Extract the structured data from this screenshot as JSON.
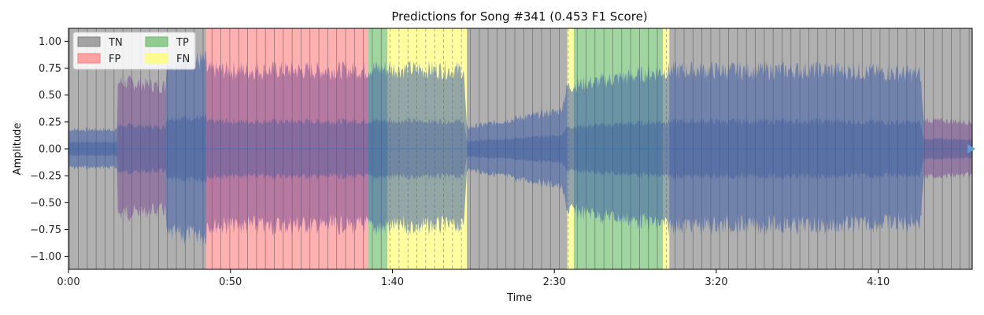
{
  "chart_data": {
    "type": "area",
    "title": "Predictions for Song #341 (0.453 F1 Score)",
    "xlabel": "Time",
    "ylabel": "Amplitude",
    "xlim": [
      0,
      279
    ],
    "ylim": [
      -1.12,
      1.12
    ],
    "x_ticks": [
      {
        "value": 0,
        "label": "0:00"
      },
      {
        "value": 50,
        "label": "0:50"
      },
      {
        "value": 100,
        "label": "1:40"
      },
      {
        "value": 150,
        "label": "2:30"
      },
      {
        "value": 200,
        "label": "3:20"
      },
      {
        "value": 250,
        "label": "4:10"
      }
    ],
    "y_ticks": [
      {
        "value": 1.0,
        "label": "1.00"
      },
      {
        "value": 0.75,
        "label": "0.75"
      },
      {
        "value": 0.5,
        "label": "0.50"
      },
      {
        "value": 0.25,
        "label": "0.25"
      },
      {
        "value": 0.0,
        "label": "0.00"
      },
      {
        "value": -0.25,
        "label": "−0.25"
      },
      {
        "value": -0.5,
        "label": "−0.50"
      },
      {
        "value": -0.75,
        "label": "−0.75"
      },
      {
        "value": -1.0,
        "label": "−1.00"
      }
    ],
    "legend": {
      "placement": "top-left",
      "entries": [
        {
          "key": "TN",
          "label": "TN",
          "color": "#808080"
        },
        {
          "key": "FP",
          "label": "FP",
          "color": "#ff7f7f"
        },
        {
          "key": "TP",
          "label": "TP",
          "color": "#66bb66"
        },
        {
          "key": "FN",
          "label": "FN",
          "color": "#ffff66"
        }
      ]
    },
    "segments": [
      {
        "start": 0,
        "end": 42.5,
        "label": "TN"
      },
      {
        "start": 42.5,
        "end": 92.5,
        "label": "FP"
      },
      {
        "start": 92.5,
        "end": 98.5,
        "label": "TP"
      },
      {
        "start": 98.5,
        "end": 123,
        "label": "FN"
      },
      {
        "start": 123,
        "end": 154,
        "label": "TN"
      },
      {
        "start": 154,
        "end": 156,
        "label": "FN"
      },
      {
        "start": 156,
        "end": 183.5,
        "label": "TP"
      },
      {
        "start": 183.5,
        "end": 185.5,
        "label": "FN"
      },
      {
        "start": 185.5,
        "end": 279,
        "label": "TN"
      }
    ],
    "envelope": [
      {
        "x": 0,
        "amp": 0.2,
        "color": "blue"
      },
      {
        "x": 15,
        "amp": 0.2,
        "color": "blue"
      },
      {
        "x": 15,
        "amp": 0.7,
        "color": "purple"
      },
      {
        "x": 30,
        "amp": 0.65,
        "color": "purple"
      },
      {
        "x": 30,
        "amp": 0.92,
        "color": "blue"
      },
      {
        "x": 42.5,
        "amp": 0.92,
        "color": "blue"
      },
      {
        "x": 42.5,
        "amp": 0.82,
        "color": "purple"
      },
      {
        "x": 92.5,
        "amp": 0.82,
        "color": "purple"
      },
      {
        "x": 92.5,
        "amp": 0.84,
        "color": "blue"
      },
      {
        "x": 122,
        "amp": 0.82,
        "color": "blue"
      },
      {
        "x": 123,
        "amp": 0.22,
        "color": "blue"
      },
      {
        "x": 152,
        "amp": 0.4,
        "color": "blue"
      },
      {
        "x": 154,
        "amp": 0.65,
        "color": "blue"
      },
      {
        "x": 185,
        "amp": 0.82,
        "color": "blue"
      },
      {
        "x": 235,
        "amp": 0.82,
        "color": "blue"
      },
      {
        "x": 263,
        "amp": 0.78,
        "color": "blue"
      },
      {
        "x": 264,
        "amp": 0.3,
        "color": "purple"
      },
      {
        "x": 279,
        "amp": 0.28,
        "color": "purple"
      }
    ],
    "grid": false,
    "beat_lines": true
  }
}
